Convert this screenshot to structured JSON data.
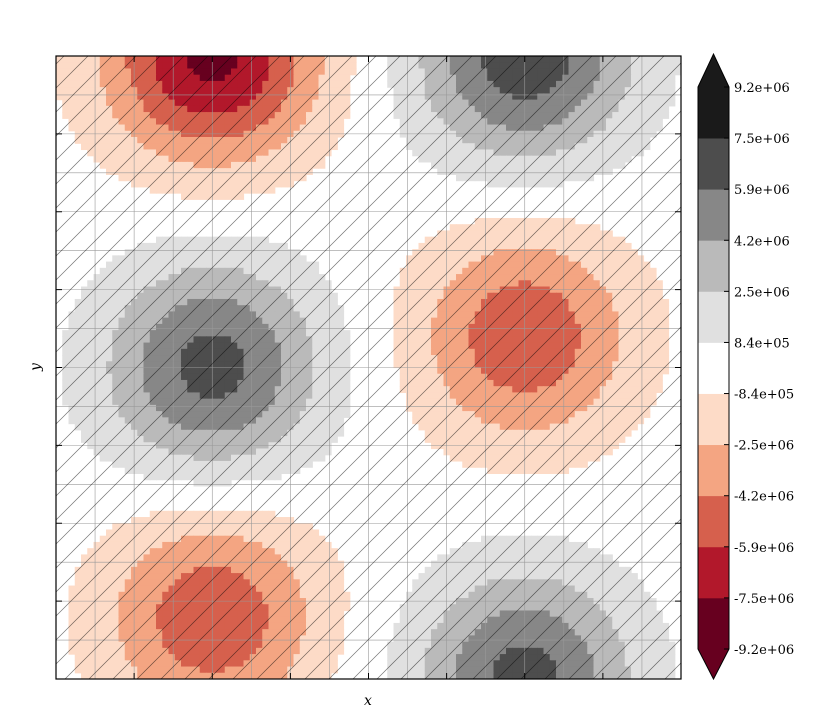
{
  "chart_data": {
    "type": "contour",
    "title": "",
    "xlabel": "x",
    "ylabel": "y",
    "hatch": "diagonal",
    "grid": true,
    "xlim": [
      0,
      1
    ],
    "ylim": [
      0,
      1
    ],
    "colorbar": {
      "position": "right",
      "extend": "both",
      "levels": [
        "-9.2e+06",
        "-7.5e+06",
        "-5.9e+06",
        "-4.2e+06",
        "-2.5e+06",
        "-8.4e+05",
        "8.4e+05",
        "2.5e+06",
        "4.2e+06",
        "5.9e+06",
        "7.5e+06",
        "9.2e+06"
      ],
      "colors": [
        "#67001f",
        "#b2182b",
        "#d6604d",
        "#f4a582",
        "#fddbc7",
        "#ffffff",
        "#e0e0e0",
        "#bababa",
        "#878787",
        "#4d4d4d",
        "#1a1a1a"
      ]
    },
    "peaks": [
      {
        "x": 0.25,
        "y": 1.0,
        "value": -8000000.0
      },
      {
        "x": 0.75,
        "y": 1.0,
        "value": 7000000.0
      },
      {
        "x": 0.25,
        "y": 0.5,
        "value": 6500000.0
      },
      {
        "x": 0.75,
        "y": 0.55,
        "value": -5500000.0
      },
      {
        "x": 0.25,
        "y": 0.1,
        "value": -5500000.0
      },
      {
        "x": 0.75,
        "y": 0.0,
        "value": 6500000.0
      }
    ]
  }
}
